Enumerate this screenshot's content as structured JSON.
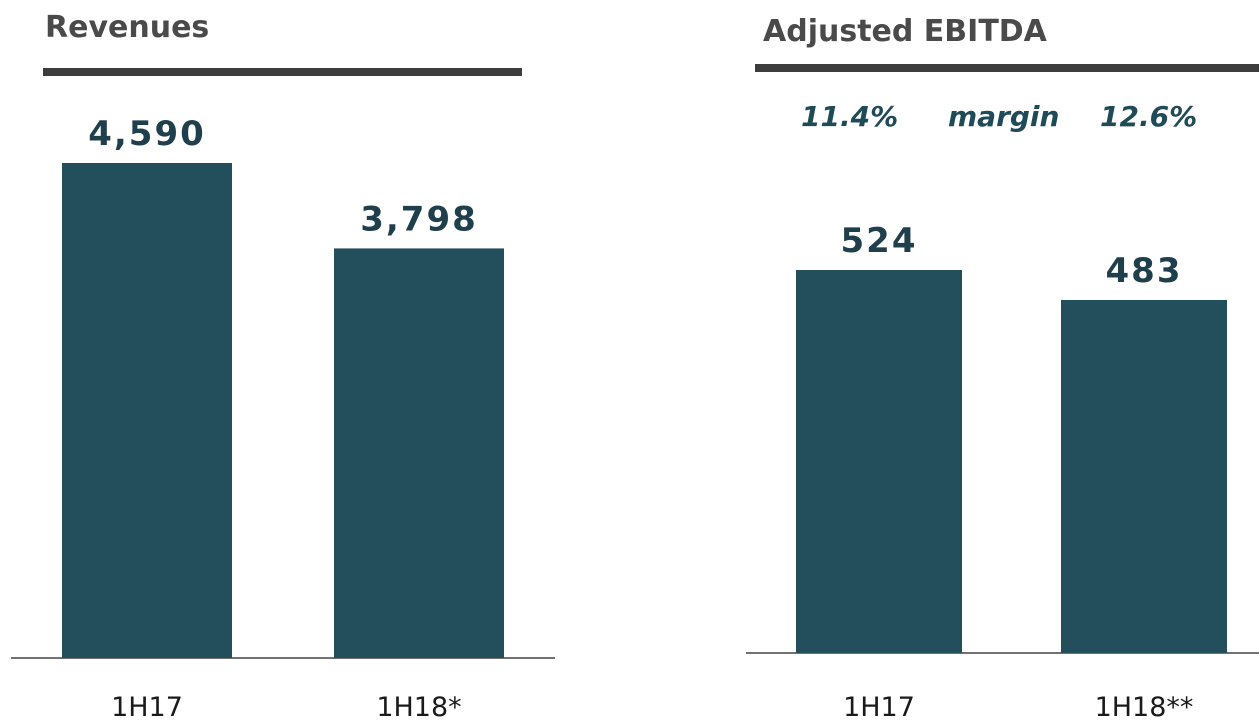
{
  "chart_data": [
    {
      "type": "bar",
      "title": "Revenues",
      "categories": [
        "1H17",
        "1H18*"
      ],
      "values": [
        4590,
        3798
      ],
      "value_labels": [
        "4,590",
        "3,798"
      ],
      "ylim": [
        0,
        4590
      ],
      "grid": false,
      "legend": "none",
      "bar_color": "#234f5d"
    },
    {
      "type": "bar",
      "title": "Adjusted EBITDA",
      "categories": [
        "1H17",
        "1H18**"
      ],
      "values": [
        524,
        483
      ],
      "value_labels": [
        "524",
        "483"
      ],
      "margins": [
        "11.4%",
        "12.6%"
      ],
      "margin_label": "margin",
      "ylim": [
        0,
        524
      ],
      "grid": false,
      "legend": "none",
      "bar_color": "#234f5d"
    }
  ]
}
